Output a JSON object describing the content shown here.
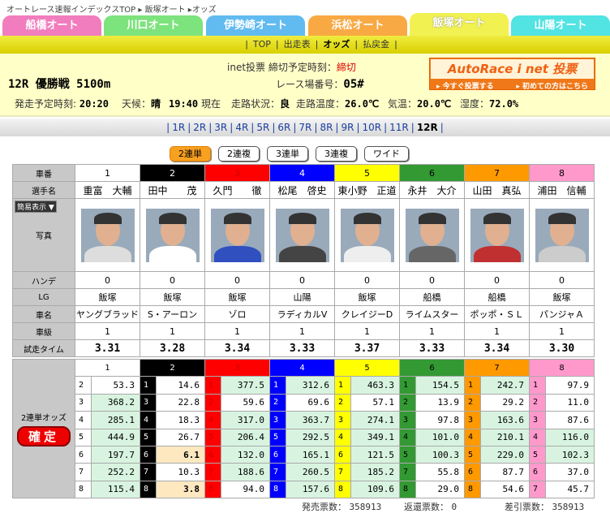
{
  "breadcrumb": [
    "オートレース速報インデックスTOP",
    "飯塚オート",
    "オッズ"
  ],
  "tabs": [
    {
      "label": "船橋オート",
      "color": "#f070b8"
    },
    {
      "label": "川口オート",
      "color": "#70e070"
    },
    {
      "label": "伊勢崎オート",
      "color": "#50b4f0"
    },
    {
      "label": "浜松オート",
      "color": "#f8a030"
    },
    {
      "label": "飯塚オート",
      "color": "#f0f040",
      "active": true
    },
    {
      "label": "山陽オート",
      "color": "#40e0e0"
    }
  ],
  "subnav": [
    {
      "label": "TOP"
    },
    {
      "label": "出走表"
    },
    {
      "label": "オッズ",
      "current": true
    },
    {
      "label": "払戻金"
    }
  ],
  "info": {
    "race": "12R 優勝戦 5100m",
    "inet_label": "inet投票 締切予定時刻：",
    "inet_value": "締切",
    "place_label": "レース場番号：",
    "place_value": "05#",
    "start_label": "発走予定時刻:",
    "start_value": "20:20",
    "weather_label": "天候：",
    "weather_value": "晴",
    "now_value": "19:40",
    "now_label": "現在",
    "track_label": "走路状況：",
    "track_value": "良",
    "temp_label": "走路温度：",
    "temp_value": "26.0℃",
    "air_label": "気温：",
    "air_value": "20.0℃",
    "hum_label": "湿度：",
    "hum_value": "72.0%"
  },
  "banner": {
    "title": "AutoRace i net 投票",
    "link1": "▸ 今すぐ投票する",
    "link2": "▸ 初めての方はこちら"
  },
  "races": [
    "1R",
    "2R",
    "3R",
    "4R",
    "5R",
    "6R",
    "7R",
    "8R",
    "9R",
    "10R",
    "11R",
    "12R"
  ],
  "current_race": "12R",
  "bet_types": [
    "2連単",
    "2連複",
    "3連単",
    "3連複",
    "ワイド"
  ],
  "labels": {
    "num": "車番",
    "name": "選手名",
    "display": "簡易表示 ▼",
    "photo": "写真",
    "handi": "ハンデ",
    "lg": "LG",
    "car": "車名",
    "class": "車級",
    "time": "試走タイム",
    "odds": "2連単オッズ",
    "kakutei": "確定"
  },
  "riders": [
    {
      "num": "1",
      "name": "重富　大輔",
      "handi": "0",
      "lg": "飯塚",
      "car": "ヤングブラッド",
      "class": "1",
      "time": "3.31",
      "color": "#ffffff",
      "fg": "#000"
    },
    {
      "num": "2",
      "name": "田中　　茂",
      "handi": "0",
      "lg": "飯塚",
      "car": "S・アーロン",
      "class": "1",
      "time": "3.28",
      "color": "#000000",
      "fg": "#fff"
    },
    {
      "num": "3",
      "name": "久門　　徹",
      "handi": "0",
      "lg": "飯塚",
      "car": "ゾロ",
      "class": "1",
      "time": "3.34",
      "color": "#ff0000",
      "fg": "#c00"
    },
    {
      "num": "4",
      "name": "松尾　啓史",
      "handi": "0",
      "lg": "山陽",
      "car": "ラディカルV",
      "class": "1",
      "time": "3.33",
      "color": "#0000ff",
      "fg": "#fff"
    },
    {
      "num": "5",
      "name": "東小野　正道",
      "handi": "0",
      "lg": "飯塚",
      "car": "クレイジーD",
      "class": "1",
      "time": "3.37",
      "color": "#ffff00",
      "fg": "#000"
    },
    {
      "num": "6",
      "name": "永井　大介",
      "handi": "0",
      "lg": "船橋",
      "car": "ライムスター",
      "class": "1",
      "time": "3.33",
      "color": "#339933",
      "fg": "#000"
    },
    {
      "num": "7",
      "name": "山田　真弘",
      "handi": "0",
      "lg": "船橋",
      "car": "ポッポ・ＳＬ",
      "class": "1",
      "time": "3.34",
      "color": "#ff9900",
      "fg": "#000"
    },
    {
      "num": "8",
      "name": "浦田　信輔",
      "handi": "0",
      "lg": "飯塚",
      "car": "パンジャＡ",
      "class": "1",
      "time": "3.30",
      "color": "#ff99cc",
      "fg": "#000"
    }
  ],
  "odds": [
    [
      [
        "2",
        "53.3"
      ],
      [
        "3",
        "368.2"
      ],
      [
        "4",
        "285.1"
      ],
      [
        "5",
        "444.9"
      ],
      [
        "6",
        "197.7"
      ],
      [
        "7",
        "252.2"
      ],
      [
        "8",
        "115.4"
      ]
    ],
    [
      [
        "1",
        "14.6"
      ],
      [
        "3",
        "22.8"
      ],
      [
        "4",
        "18.3"
      ],
      [
        "5",
        "26.7"
      ],
      [
        "6",
        "6.1",
        "p"
      ],
      [
        "7",
        "10.3"
      ],
      [
        "8",
        "3.8",
        "p"
      ]
    ],
    [
      [
        "1",
        "377.5"
      ],
      [
        "2",
        "59.6"
      ],
      [
        "4",
        "317.0"
      ],
      [
        "5",
        "206.4"
      ],
      [
        "6",
        "132.0"
      ],
      [
        "7",
        "188.6"
      ],
      [
        "8",
        "94.0"
      ]
    ],
    [
      [
        "1",
        "312.6"
      ],
      [
        "2",
        "69.6"
      ],
      [
        "3",
        "363.7"
      ],
      [
        "5",
        "292.5"
      ],
      [
        "6",
        "165.1"
      ],
      [
        "7",
        "260.5"
      ],
      [
        "8",
        "157.6"
      ]
    ],
    [
      [
        "1",
        "463.3"
      ],
      [
        "2",
        "57.1"
      ],
      [
        "3",
        "274.1"
      ],
      [
        "4",
        "349.1"
      ],
      [
        "6",
        "121.5"
      ],
      [
        "7",
        "185.2"
      ],
      [
        "8",
        "109.6"
      ]
    ],
    [
      [
        "1",
        "154.5"
      ],
      [
        "2",
        "13.9"
      ],
      [
        "3",
        "97.8"
      ],
      [
        "4",
        "101.0"
      ],
      [
        "5",
        "100.3"
      ],
      [
        "7",
        "55.8"
      ],
      [
        "8",
        "29.0"
      ]
    ],
    [
      [
        "1",
        "242.7"
      ],
      [
        "2",
        "29.2"
      ],
      [
        "3",
        "163.6"
      ],
      [
        "4",
        "210.1"
      ],
      [
        "5",
        "229.0"
      ],
      [
        "6",
        "87.7"
      ],
      [
        "8",
        "54.6"
      ]
    ],
    [
      [
        "1",
        "97.9"
      ],
      [
        "2",
        "11.0"
      ],
      [
        "3",
        "87.6"
      ],
      [
        "4",
        "116.0"
      ],
      [
        "5",
        "102.3"
      ],
      [
        "6",
        "37.0"
      ],
      [
        "7",
        "45.7"
      ]
    ]
  ],
  "footer": {
    "sold_label": "発売票数：",
    "sold": "358913",
    "refund_label": "返還票数：",
    "refund": "0",
    "net_label": "差引票数：",
    "net": "358913"
  }
}
